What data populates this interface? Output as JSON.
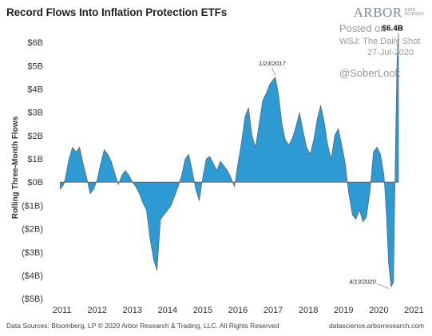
{
  "title": "Record Flows Into Inflation Protection ETFs",
  "brand": {
    "main": "ARBOR",
    "sub_line1": "DATA",
    "sub_line2": "SCIENCE"
  },
  "watermark": {
    "posted": "Posted on",
    "source": "WSJ: The Daily Shot",
    "date": "27-Jul-2020",
    "handle": "@SoberLook"
  },
  "footer": {
    "left": "Data Sources: Bloomberg, LP © 2020 Arbor Research & Trading, LLC. All Rights Reserved",
    "right": "datascience.arborresearch.com"
  },
  "chart_data": {
    "type": "area",
    "title": "Record Flows Into Inflation Protection ETFs",
    "ylabel": "Rolling Three-Month Flows",
    "xlabel": "",
    "xlim": [
      2010.6,
      2021.15
    ],
    "ylim": [
      -5.2,
      6.45
    ],
    "grid": false,
    "color": "#2e9ad3",
    "y_ticks": [
      {
        "v": 6,
        "label": "$6B"
      },
      {
        "v": 5,
        "label": "$5B"
      },
      {
        "v": 4,
        "label": "$4B"
      },
      {
        "v": 3,
        "label": "$3B"
      },
      {
        "v": 2,
        "label": "$2B"
      },
      {
        "v": 1,
        "label": "$1B"
      },
      {
        "v": 0,
        "label": "$0B"
      },
      {
        "v": -1,
        "label": "($1B)"
      },
      {
        "v": -2,
        "label": "($2B)"
      },
      {
        "v": -3,
        "label": "($3B)"
      },
      {
        "v": -4,
        "label": "($4B)"
      },
      {
        "v": -5,
        "label": "($5B)"
      }
    ],
    "x_ticks": [
      {
        "v": 2011,
        "label": "2011"
      },
      {
        "v": 2012,
        "label": "2012"
      },
      {
        "v": 2013,
        "label": "2013"
      },
      {
        "v": 2014,
        "label": "2014"
      },
      {
        "v": 2015,
        "label": "2015"
      },
      {
        "v": 2016,
        "label": "2016"
      },
      {
        "v": 2017,
        "label": "2017"
      },
      {
        "v": 2018,
        "label": "2018"
      },
      {
        "v": 2019,
        "label": "2019"
      },
      {
        "v": 2020,
        "label": "2020"
      },
      {
        "v": 2021,
        "label": "2021"
      }
    ],
    "series": [
      {
        "x": [
          2010.95,
          2011.05,
          2011.1,
          2011.2,
          2011.3,
          2011.4,
          2011.5,
          2011.6,
          2011.7,
          2011.8,
          2011.9,
          2012.0,
          2012.1,
          2012.2,
          2012.3,
          2012.4,
          2012.5,
          2012.6,
          2012.7,
          2012.8,
          2012.9,
          2013.0,
          2013.1,
          2013.2,
          2013.3,
          2013.4,
          2013.5,
          2013.6,
          2013.7,
          2013.8,
          2013.9,
          2014.0,
          2014.1,
          2014.2,
          2014.3,
          2014.4,
          2014.5,
          2014.6,
          2014.7,
          2014.8,
          2014.9,
          2015.0,
          2015.1,
          2015.2,
          2015.3,
          2015.4,
          2015.5,
          2015.6,
          2015.7,
          2015.8,
          2015.9,
          2016.0,
          2016.1,
          2016.2,
          2016.3,
          2016.4,
          2016.5,
          2016.6,
          2016.7,
          2016.8,
          2016.9,
          2017.0,
          2017.06,
          2017.15,
          2017.25,
          2017.35,
          2017.45,
          2017.55,
          2017.65,
          2017.75,
          2017.85,
          2017.95,
          2018.05,
          2018.15,
          2018.25,
          2018.35,
          2018.45,
          2018.55,
          2018.65,
          2018.75,
          2018.85,
          2018.95,
          2019.05,
          2019.15,
          2019.25,
          2019.35,
          2019.45,
          2019.55,
          2019.65,
          2019.75,
          2019.85,
          2019.95,
          2020.05,
          2020.15,
          2020.22,
          2020.28,
          2020.35,
          2020.42,
          2020.48,
          2020.52,
          2020.56
        ],
        "y": [
          -0.3,
          -0.1,
          0.2,
          1.0,
          1.5,
          1.3,
          1.5,
          0.8,
          0.2,
          -0.5,
          -0.3,
          0.1,
          0.8,
          1.4,
          1.2,
          0.9,
          0.4,
          -0.1,
          0.3,
          0.5,
          0.3,
          0.0,
          -0.2,
          -0.5,
          -0.9,
          -1.2,
          -2.4,
          -3.3,
          -3.8,
          -1.6,
          -1.4,
          -1.2,
          -1.0,
          -0.6,
          -0.2,
          0.3,
          1.0,
          1.2,
          0.5,
          -0.3,
          -0.8,
          0.2,
          1.0,
          1.1,
          0.8,
          0.5,
          0.9,
          0.7,
          0.5,
          0.2,
          -0.2,
          0.8,
          1.7,
          2.8,
          3.2,
          2.0,
          1.5,
          2.5,
          3.5,
          3.8,
          4.2,
          4.4,
          4.5,
          3.8,
          2.5,
          1.8,
          1.6,
          1.9,
          2.4,
          3.0,
          2.2,
          1.5,
          1.2,
          1.8,
          2.7,
          3.3,
          2.6,
          1.6,
          1.0,
          2.0,
          2.3,
          1.6,
          0.8,
          -0.5,
          -1.4,
          -1.6,
          -1.2,
          -1.7,
          -1.5,
          -0.4,
          1.3,
          1.5,
          1.2,
          0.3,
          -1.5,
          -3.5,
          -4.5,
          -4.3,
          2.0,
          5.2,
          6.4
        ]
      }
    ],
    "annotations": [
      {
        "x": 2017.06,
        "y": 4.5,
        "text": "1/23/2017"
      },
      {
        "x": 2020.28,
        "y": -4.5,
        "text": "4/13/2020"
      }
    ],
    "last_value_label": "$6.4B"
  }
}
